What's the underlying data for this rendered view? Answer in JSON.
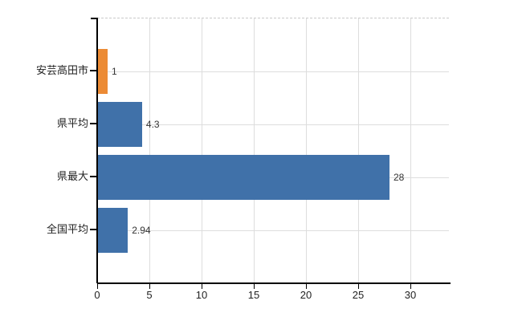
{
  "chart_data": {
    "type": "bar",
    "orientation": "horizontal",
    "title": "",
    "xlabel": "",
    "ylabel": "",
    "categories": [
      "安芸高田市",
      "県平均",
      "県最大",
      "全国平均"
    ],
    "values": [
      1,
      4.3,
      28,
      2.94
    ],
    "value_labels": [
      "1",
      "4.3",
      "28",
      "2.94"
    ],
    "bar_colors": [
      "#EC8B35",
      "#4071A9",
      "#4071A9",
      "#4071A9"
    ],
    "x_ticks": [
      "0",
      "5",
      "10",
      "15",
      "20",
      "25",
      "30"
    ],
    "x_tick_values": [
      0,
      5,
      10,
      15,
      20,
      25,
      30
    ],
    "xlim": [
      0,
      33.7
    ],
    "grid": true,
    "legend": "none",
    "colors": {
      "highlight_bar": "#EC8B35",
      "default_bar": "#4071A9",
      "gridline": "#dddddd",
      "top_border": "#c9c9c9",
      "axis": "#000000",
      "text": "#222222",
      "value_text": "#333333",
      "background": "#ffffff"
    }
  }
}
